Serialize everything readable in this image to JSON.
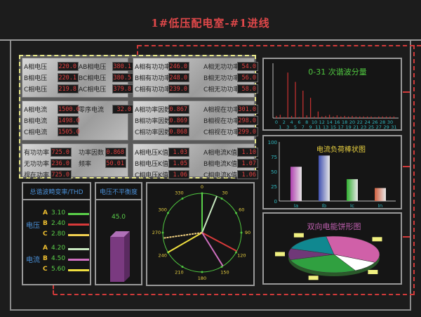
{
  "title": "1#低压配电室-#1进线",
  "meters": {
    "voltage": [
      [
        "A相电压",
        "220.0",
        "AB相电压",
        "380.1"
      ],
      [
        "B相电压",
        "220.1",
        "BC相电压",
        "380.5"
      ],
      [
        "C相电压",
        "219.8",
        "AC相电压",
        "379.8"
      ]
    ],
    "current": [
      [
        "A相电流",
        "1500.0",
        "零序电流",
        "32.0"
      ],
      [
        "B相电流",
        "1498.0",
        "",
        ""
      ],
      [
        "C相电流",
        "1505.0",
        "",
        ""
      ]
    ],
    "total": [
      [
        "有功功率",
        "725.0",
        "功率因数",
        "0.868"
      ],
      [
        "无功功率",
        "236.0",
        "频率",
        "50.01"
      ],
      [
        "视在功率",
        "725.0",
        "",
        ""
      ]
    ],
    "power": [
      [
        "A相有功功率",
        "246.0",
        "A相无功功率",
        "54.0"
      ],
      [
        "B相有功功率",
        "248.0",
        "B相无功功率",
        "56.0"
      ],
      [
        "C相有功功率",
        "239.0",
        "C相无功功率",
        "58.0"
      ]
    ],
    "pf": [
      [
        "A相功率因数",
        "0.867",
        "A相视在功率",
        "301.0"
      ],
      [
        "B相功率因数",
        "0.869",
        "B相视在功率",
        "298.0"
      ],
      [
        "C相功率因数",
        "0.868",
        "C相视在功率",
        "299.0"
      ]
    ],
    "k": [
      [
        "A相电压K值",
        "1.03",
        "A相电流K值",
        "1.10"
      ],
      [
        "B相电压K值",
        "1.05",
        "B相电流K值",
        "1.07"
      ],
      [
        "C相电压K值",
        "1.06",
        "C相电流K值",
        "1.06"
      ]
    ]
  },
  "thd": {
    "title": "总谐波畸变率/THD",
    "voltage_label": "电压",
    "current_label": "电流",
    "voltage": [
      {
        "phase": "A",
        "value": "3.10",
        "color": "#5ad04a"
      },
      {
        "phase": "B",
        "value": "2.40",
        "color": "#d83a3a"
      },
      {
        "phase": "C",
        "value": "2.80",
        "color": "#f0d050"
      }
    ],
    "current": [
      {
        "phase": "A",
        "value": "4.20",
        "color": "#c8e8c0"
      },
      {
        "phase": "B",
        "value": "4.50",
        "color": "#d070c0"
      },
      {
        "phase": "C",
        "value": "5.60",
        "color": "#f0e040"
      }
    ]
  },
  "unbalance": {
    "title": "电压不平衡度",
    "value": "45.0"
  },
  "chart_data": [
    {
      "type": "bar",
      "title": "0-31 次谐波分量",
      "categories": [
        "0",
        "1",
        "2",
        "3",
        "4",
        "5",
        "6",
        "7",
        "8",
        "9",
        "10",
        "11",
        "12",
        "13",
        "14",
        "15",
        "16",
        "17",
        "18",
        "19",
        "20",
        "21",
        "22",
        "23",
        "24",
        "25",
        "26",
        "27",
        "28",
        "29",
        "30",
        "31"
      ],
      "values": [
        4,
        6,
        2,
        83,
        4,
        66,
        2,
        50,
        5,
        37,
        3,
        12,
        3,
        4,
        6,
        3,
        5,
        3,
        4,
        3,
        4,
        3,
        3,
        3,
        3,
        3,
        2,
        3,
        3,
        3,
        3,
        3
      ],
      "color": "#c03030"
    },
    {
      "type": "bar",
      "title": "电流负荷棒状图",
      "categories": [
        "Ia",
        "Ib",
        "Ic",
        "In"
      ],
      "values": [
        58,
        77,
        37,
        22
      ],
      "ylim": [
        0,
        100
      ],
      "yticks": [
        "0",
        "25",
        "50",
        "75",
        "100"
      ],
      "colors": [
        "#b040b0",
        "#4050b0",
        "#30b030",
        "#d06040"
      ]
    },
    {
      "type": "phasor",
      "ticks": [
        "0",
        "30",
        "60",
        "90",
        "120",
        "150",
        "180",
        "210",
        "240",
        "270",
        "300",
        "330"
      ],
      "vectors": [
        {
          "angle": 0,
          "color": "#5ad04a"
        },
        {
          "angle": 22,
          "color": "#c8e8c0"
        },
        {
          "angle": 118,
          "color": "#d83a3a"
        },
        {
          "angle": 148,
          "color": "#d070c0"
        },
        {
          "angle": 240,
          "color": "#f0e040"
        },
        {
          "angle": 262,
          "color": "#f0d080",
          "dashed": true
        }
      ]
    },
    {
      "type": "pie",
      "title": "双向电能饼形图",
      "values": [
        35,
        10,
        28,
        10,
        17
      ],
      "colors": [
        "#d060a8",
        "#ffffff",
        "#30a040",
        "#703878",
        "#108890"
      ]
    }
  ]
}
